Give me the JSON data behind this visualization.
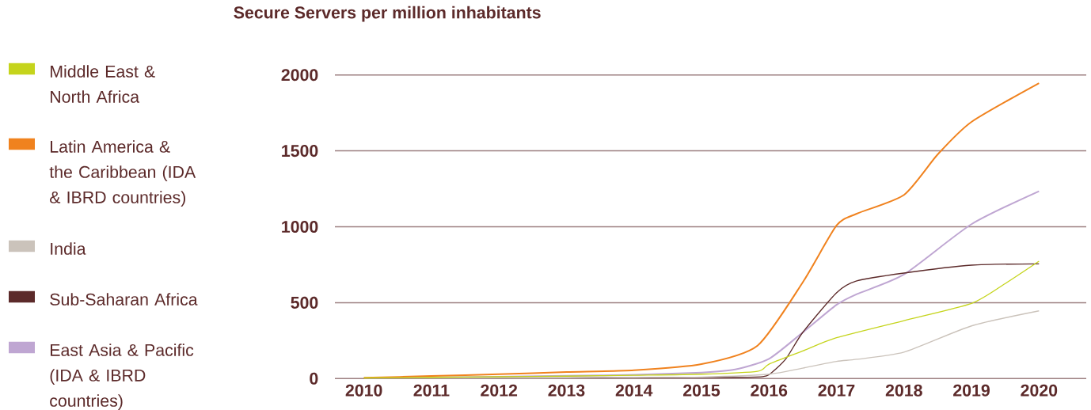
{
  "chart_data": {
    "type": "line",
    "title": "Secure Servers per million inhabitants",
    "series": [
      {
        "name": "Middle East & North Africa",
        "color": "#c5d41c",
        "x": [
          2010,
          2011,
          2012,
          2013,
          2014,
          2015,
          2015.83,
          2016,
          2016.5,
          2017,
          2018,
          2019,
          2019.5,
          2020
        ],
        "values": [
          4,
          8,
          12,
          16,
          22,
          29,
          48,
          95,
          182,
          269,
          382,
          495,
          626,
          773
        ]
      },
      {
        "name": "Latin America & the Caribbean (IDA & IBRD countries)",
        "color": "#f0821e",
        "x": [
          2010,
          2011,
          2012,
          2013,
          2014,
          2015,
          2015.83,
          2016.5,
          2017,
          2017.3,
          2018,
          2018.5,
          2019,
          2020
        ],
        "values": [
          5,
          17,
          29,
          43,
          55,
          95,
          217,
          634,
          1008,
          1086,
          1210,
          1477,
          1691,
          1946
        ]
      },
      {
        "name": "India",
        "color": "#cbc3bb",
        "x": [
          2010,
          2011,
          2012,
          2013,
          2014,
          2015,
          2016,
          2016.5,
          2017,
          2017.3,
          2018,
          2019,
          2020
        ],
        "values": [
          2,
          null,
          4,
          5,
          7,
          10,
          29,
          69,
          113,
          127,
          174,
          347,
          446
        ]
      },
      {
        "name": "Sub-Saharan Africa",
        "color": "#5c2a2a",
        "x": [
          2010,
          2011,
          2012,
          2013,
          2014,
          2015,
          2015.8,
          2016,
          2016.25,
          2016.5,
          2017,
          2017.3,
          2018,
          2019,
          2020
        ],
        "values": [
          2,
          3,
          4,
          5,
          6,
          8,
          10,
          26,
          130,
          304,
          565,
          643,
          695,
          747,
          756
        ]
      },
      {
        "name": "East Asia & Pacific (IDA & IBRD countries)",
        "color": "#bfa6d2",
        "x": [
          2010,
          2011,
          2012,
          2013,
          2014,
          2015,
          2015.5,
          2016,
          2016.5,
          2017,
          2017.3,
          2018,
          2019,
          2020
        ],
        "values": [
          3,
          null,
          12,
          18,
          25,
          40,
          60,
          130,
          304,
          486,
          556,
          686,
          1017,
          1234
        ]
      }
    ],
    "xlim": [
      2009.57,
      2020.7
    ],
    "ylim": [
      0,
      2000
    ],
    "xticks": [
      2010,
      2011,
      2012,
      2013,
      2014,
      2015,
      2016,
      2017,
      2018,
      2019,
      2020
    ],
    "yticks": [
      0,
      500,
      1000,
      1500,
      2000
    ],
    "grid": "y",
    "legend": "left"
  }
}
